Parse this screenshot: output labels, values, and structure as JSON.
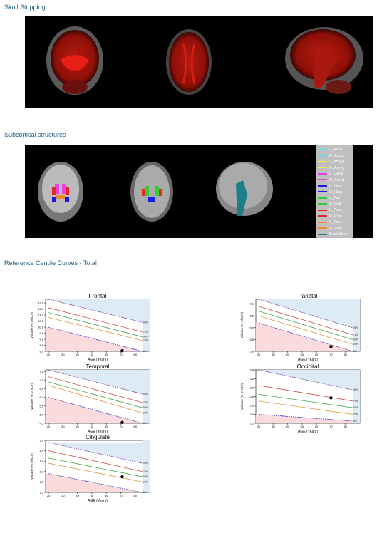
{
  "sections": {
    "skull": "Skull Stripping",
    "subcortical": "Subcortical structures",
    "centile": "Reference Centile Curves - Total"
  },
  "legend": [
    {
      "label": "L_Accu",
      "color": "#4fe0ea"
    },
    {
      "label": "R_Accu",
      "color": "#4fe0ea"
    },
    {
      "label": "L_Amyg",
      "color": "#f0f050"
    },
    {
      "label": "R_Amyg",
      "color": "#f0f050"
    },
    {
      "label": "L_Caud",
      "color": "#e640e6"
    },
    {
      "label": "R_Caud",
      "color": "#e640e6"
    },
    {
      "label": "L_Hipp",
      "color": "#1a1ae6"
    },
    {
      "label": "R_Hipp",
      "color": "#1a1ae6"
    },
    {
      "label": "L_Pall",
      "color": "#33cc33"
    },
    {
      "label": "R_Pall",
      "color": "#33cc33"
    },
    {
      "label": "L_Puta",
      "color": "#e62626"
    },
    {
      "label": "R_Puta",
      "color": "#e62626"
    },
    {
      "label": "L_Thal",
      "color": "#f08a2a"
    },
    {
      "label": "R_Thal",
      "color": "#f08a2a"
    },
    {
      "label": "BrainStem",
      "color": "#1a7f8a"
    }
  ],
  "chart_data": [
    {
      "type": "line",
      "title": "Frontal",
      "xlabel": "AGE (Years)",
      "ylabel": "Volume (% of ICV)",
      "xlim": [
        18,
        90
      ],
      "ylim": [
        8.0,
        12.3
      ],
      "x_ticks": [
        20,
        30,
        40,
        50,
        60,
        70,
        80
      ],
      "y_ticks": [
        "8.0",
        "8.5",
        "9.0",
        "9.5",
        "10.0",
        "10.5",
        "11.0",
        "11.5",
        "12.0"
      ],
      "y_tick_values": [
        8.0,
        8.5,
        9.0,
        9.5,
        10.0,
        10.5,
        11.0,
        11.5,
        12.0
      ],
      "centiles": [
        {
          "x": [
            20,
            85
          ],
          "y": [
            10.0,
            8.0
          ]
        },
        {
          "x": [
            20,
            85
          ],
          "y": [
            10.8,
            8.9
          ]
        },
        {
          "x": [
            20,
            85
          ],
          "y": [
            11.2,
            9.2
          ]
        },
        {
          "x": [
            20,
            85
          ],
          "y": [
            11.6,
            9.6
          ]
        },
        {
          "x": [
            20,
            85
          ],
          "y": [
            12.3,
            10.4
          ]
        }
      ],
      "point": {
        "x": 71,
        "y": 8.05
      }
    },
    {
      "type": "line",
      "title": "Parietal",
      "xlabel": "AGE (Years)",
      "ylabel": "Volume (% of ICV)",
      "xlim": [
        18,
        90
      ],
      "ylim": [
        5.0,
        7.2
      ],
      "x_ticks": [
        20,
        30,
        40,
        50,
        60,
        70,
        80
      ],
      "y_ticks": [
        "5.0",
        "5.5",
        "6.0",
        "6.5",
        "7.0"
      ],
      "y_tick_values": [
        5.0,
        5.5,
        6.0,
        6.5,
        7.0
      ],
      "centiles": [
        {
          "x": [
            20,
            85
          ],
          "y": [
            6.2,
            5.0
          ]
        },
        {
          "x": [
            20,
            85
          ],
          "y": [
            6.5,
            5.3
          ]
        },
        {
          "x": [
            20,
            85
          ],
          "y": [
            6.7,
            5.5
          ]
        },
        {
          "x": [
            20,
            85
          ],
          "y": [
            6.9,
            5.7
          ]
        },
        {
          "x": [
            20,
            85
          ],
          "y": [
            7.2,
            6.0
          ]
        }
      ],
      "point": {
        "x": 70,
        "y": 5.2
      }
    },
    {
      "type": "line",
      "title": "Temporal",
      "xlabel": "AGE (Years)",
      "ylabel": "Volume (% of ICV)",
      "xlim": [
        18,
        90
      ],
      "ylim": [
        4.5,
        7.6
      ],
      "x_ticks": [
        20,
        30,
        40,
        50,
        60,
        70,
        80
      ],
      "y_ticks": [
        "4.5",
        "5.0",
        "5.5",
        "6.0",
        "6.5",
        "7.0",
        "7.5"
      ],
      "y_tick_values": [
        4.5,
        5.0,
        5.5,
        6.0,
        6.5,
        7.0,
        7.5
      ],
      "centiles": [
        {
          "x": [
            20,
            85
          ],
          "y": [
            6.0,
            4.5
          ]
        },
        {
          "x": [
            20,
            85
          ],
          "y": [
            6.7,
            5.1
          ]
        },
        {
          "x": [
            20,
            85
          ],
          "y": [
            6.9,
            5.4
          ]
        },
        {
          "x": [
            20,
            85
          ],
          "y": [
            7.2,
            5.7
          ]
        },
        {
          "x": [
            20,
            85
          ],
          "y": [
            7.6,
            6.2
          ]
        }
      ],
      "point": {
        "x": 71,
        "y": 4.55
      }
    },
    {
      "type": "line",
      "title": "Occipital",
      "xlabel": "AGE (Years)",
      "ylabel": "Volume (% of ICV)",
      "xlim": [
        18,
        90
      ],
      "ylim": [
        2.2,
        3.4
      ],
      "x_ticks": [
        20,
        30,
        40,
        50,
        60,
        70,
        80
      ],
      "y_ticks": [
        "2.2",
        "2.4",
        "2.6",
        "2.8",
        "3.0",
        "3.2",
        "3.4"
      ],
      "y_tick_values": [
        2.2,
        2.4,
        2.6,
        2.8,
        3.0,
        3.2,
        3.4
      ],
      "centiles": [
        {
          "x": [
            20,
            85
          ],
          "y": [
            2.4,
            2.25
          ]
        },
        {
          "x": [
            20,
            85
          ],
          "y": [
            2.7,
            2.4
          ]
        },
        {
          "x": [
            20,
            85
          ],
          "y": [
            2.85,
            2.55
          ]
        },
        {
          "x": [
            20,
            85
          ],
          "y": [
            3.05,
            2.7
          ]
        },
        {
          "x": [
            20,
            85
          ],
          "y": [
            3.4,
            2.95
          ]
        }
      ],
      "point": {
        "x": 70,
        "y": 2.77
      }
    },
    {
      "type": "line",
      "title": "Cingulate",
      "xlabel": "AGE (Years)",
      "ylabel": "Volume (% of ICV)",
      "xlim": [
        18,
        90
      ],
      "ylim": [
        1.1,
        1.6
      ],
      "x_ticks": [
        20,
        30,
        40,
        50,
        60,
        70,
        80
      ],
      "y_ticks": [
        "1.1",
        "1.2",
        "1.3",
        "1.4",
        "1.5",
        "1.6"
      ],
      "y_tick_values": [
        1.1,
        1.2,
        1.3,
        1.4,
        1.5,
        1.6
      ],
      "centiles": [
        {
          "x": [
            20,
            85
          ],
          "y": [
            1.28,
            1.1
          ]
        },
        {
          "x": [
            20,
            85
          ],
          "y": [
            1.38,
            1.2
          ]
        },
        {
          "x": [
            20,
            85
          ],
          "y": [
            1.43,
            1.25
          ]
        },
        {
          "x": [
            20,
            85
          ],
          "y": [
            1.5,
            1.3
          ]
        },
        {
          "x": [
            20,
            85
          ],
          "y": [
            1.58,
            1.38
          ]
        }
      ],
      "point": {
        "x": 71,
        "y": 1.25
      }
    }
  ]
}
